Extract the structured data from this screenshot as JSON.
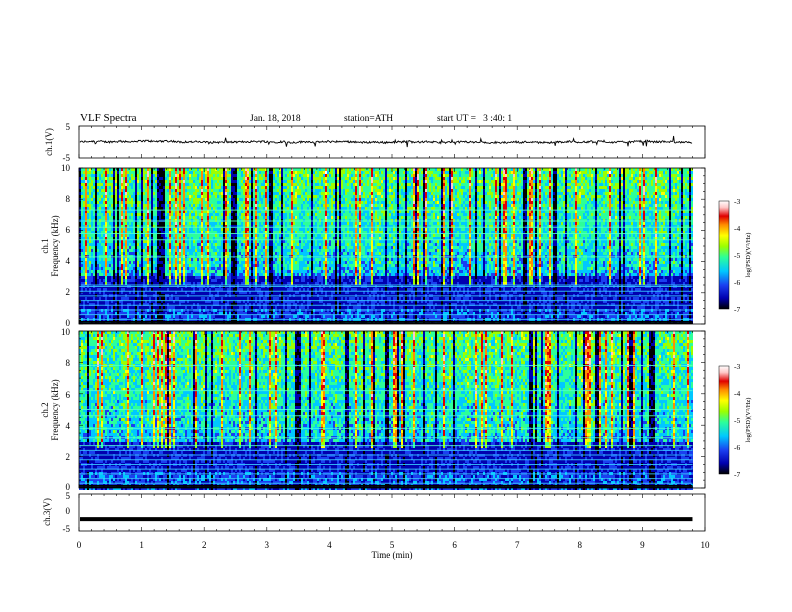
{
  "header": {
    "title": "VLF Spectra",
    "date": "Jan. 18, 2018",
    "station": "station=ATH",
    "start": "start UT =   3 :40: 1"
  },
  "chart_data": [
    {
      "type": "line",
      "panel": "ch1-waveform",
      "ylabel": "ch.1(V)",
      "ylim": [
        -5,
        5
      ],
      "yticks": [
        "5",
        "-5"
      ],
      "xlim": [
        0,
        10
      ],
      "series": [
        {
          "x_range": [
            0,
            9.8
          ],
          "baseline": 0.0,
          "noise_amplitude": 0.6,
          "spike_amplitude": 1.6,
          "color": "#000000"
        }
      ]
    },
    {
      "type": "heatmap",
      "panel": "ch1-spectrogram",
      "ylabel": "ch.1",
      "ylabel2": "Frequency (kHz)",
      "ylim": [
        0,
        10
      ],
      "yticks": [
        0,
        2,
        4,
        6,
        8,
        10
      ],
      "xlim": [
        0,
        10
      ],
      "data_xlim": [
        0,
        9.8
      ],
      "colorbar": {
        "label": "log(PSD)(V²/Hz)",
        "range": [
          -7,
          -3
        ],
        "ticks": [
          "-3",
          "-4",
          "-5",
          "-6",
          "-7"
        ]
      },
      "line_frequencies_khz": [
        0.3,
        0.6,
        0.9,
        1.2,
        1.5,
        1.8,
        2.1,
        2.4,
        2.5,
        4.3,
        5.4,
        5.8,
        6.2,
        6.6,
        7.3
      ],
      "dominant_band": "broadband sferics 3-10 kHz, quiet 1-3 kHz"
    },
    {
      "type": "heatmap",
      "panel": "ch2-spectrogram",
      "ylabel": "ch.2",
      "ylabel2": "Frequency (kHz)",
      "ylim": [
        0,
        10
      ],
      "yticks": [
        0,
        2,
        4,
        6,
        8,
        10
      ],
      "xlim": [
        0,
        10
      ],
      "data_xlim": [
        0,
        9.8
      ],
      "colorbar": {
        "label": "log(PSD)(V²/Hz)",
        "range": [
          -7,
          -3
        ],
        "ticks": [
          "-3",
          "-4",
          "-5",
          "-6",
          "-7"
        ]
      },
      "line_frequencies_khz": [
        0.3,
        0.6,
        0.9,
        1.2,
        1.5,
        1.8,
        2.1,
        2.4,
        2.7,
        3.2,
        3.8,
        4.6,
        5.0,
        6.2,
        7.8
      ],
      "dominant_band": "broadband sferics 3-10 kHz, quiet 1-3 kHz"
    },
    {
      "type": "line",
      "panel": "ch3-waveform",
      "ylabel": "ch.3(V)",
      "ylim": [
        -5,
        5
      ],
      "yticks": [
        "5",
        "0",
        "-5"
      ],
      "xlim": [
        0,
        10
      ],
      "series": [
        {
          "x_range": [
            0,
            9.8
          ],
          "baseline": -1.8,
          "noise_amplitude": 0.0,
          "color": "#000000"
        }
      ]
    }
  ],
  "xaxis": {
    "label": "Time (min)",
    "range": [
      0,
      10
    ],
    "ticks": [
      "0",
      "1",
      "2",
      "3",
      "4",
      "5",
      "6",
      "7",
      "8",
      "9",
      "10"
    ]
  },
  "colors": {
    "colormap": [
      "#000000",
      "#0000b0",
      "#1a3ff0",
      "#00c8ff",
      "#2cff9a",
      "#9bff00",
      "#ffff00",
      "#ff8c00",
      "#e00000",
      "#ffc8c8",
      "#ffffff"
    ]
  }
}
